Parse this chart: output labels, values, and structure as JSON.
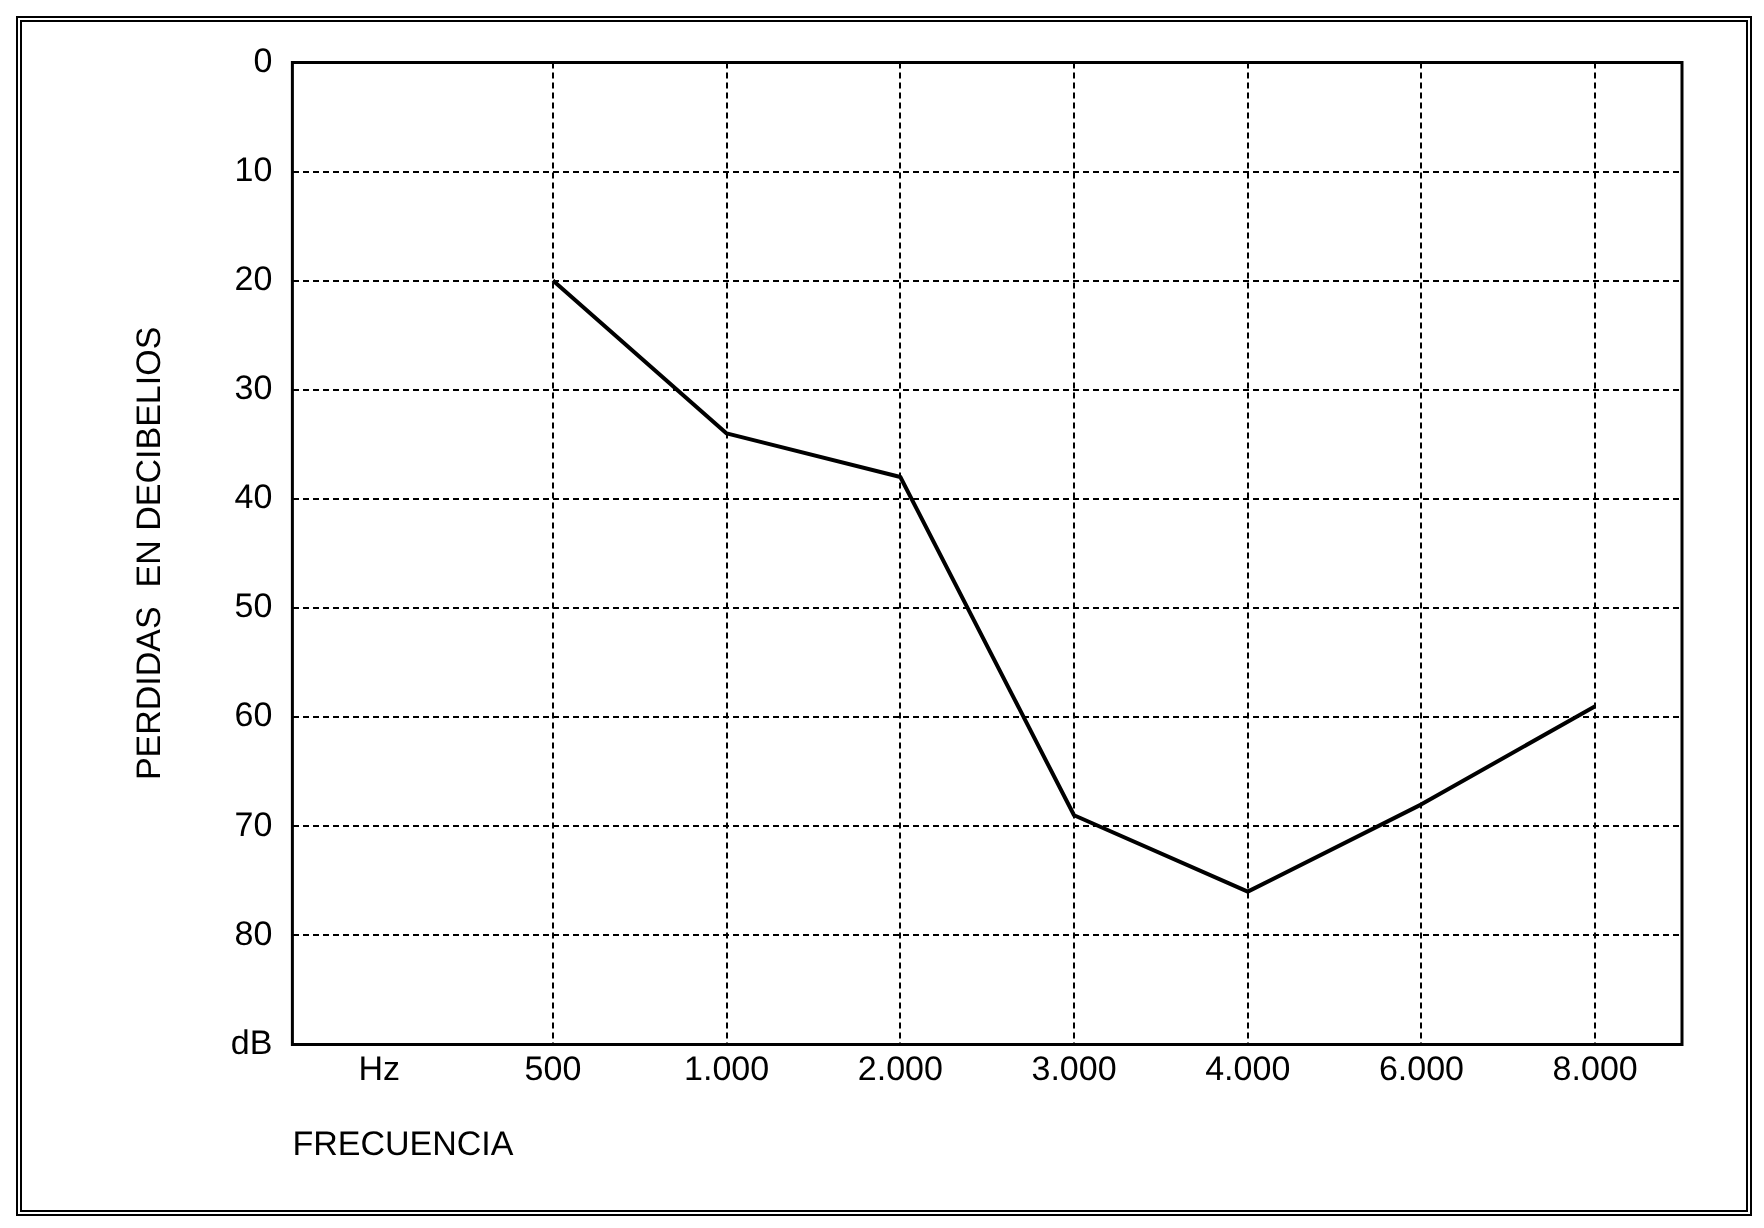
{
  "chart_data": {
    "type": "line",
    "xlabel": "FRECUENCIA",
    "ylabel": "PERDIDAS  EN DECIBELIOS",
    "categories": [
      "Hz",
      "500",
      "1.000",
      "2.000",
      "3.000",
      "4.000",
      "6.000",
      "8.000"
    ],
    "series": [
      {
        "color": "#000000",
        "values": [
          null,
          20,
          34,
          38,
          69,
          76,
          68,
          59
        ]
      }
    ],
    "ylim": [
      90,
      0
    ],
    "yticks": [
      0,
      10,
      20,
      30,
      40,
      50,
      60,
      70,
      80,
      {
        "value": 90,
        "label": "dB"
      }
    ],
    "grid": true,
    "legend": false,
    "marker": "none",
    "line_style": "solid"
  }
}
